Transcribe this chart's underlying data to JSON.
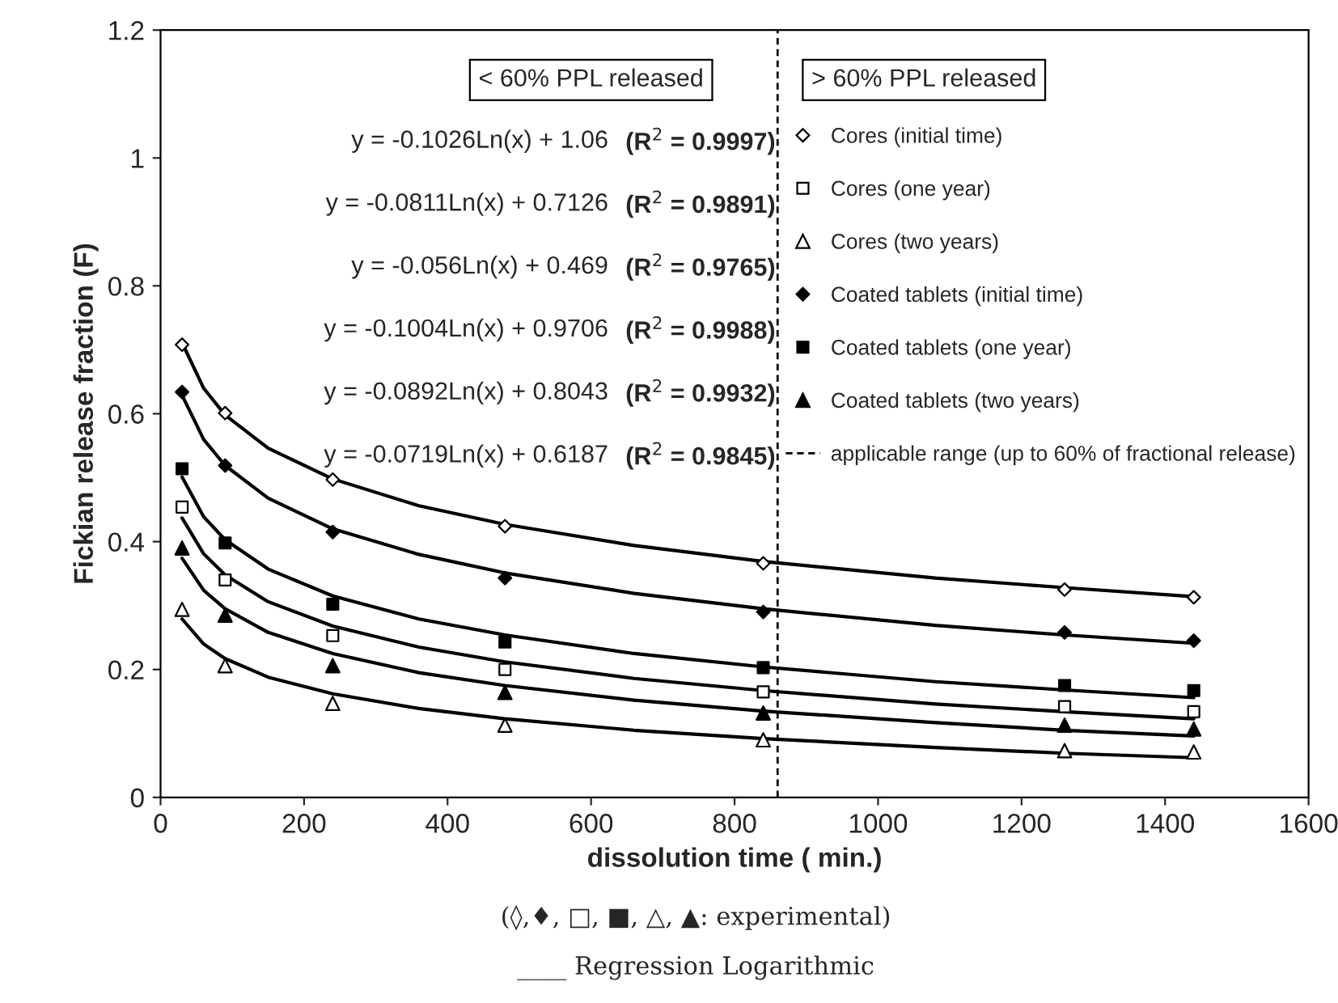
{
  "chart_data": {
    "type": "scatter",
    "xlabel": "dissolution time ( min.)",
    "ylabel": "Fickian release fraction (F)",
    "xlim": [
      0,
      1600
    ],
    "xticks": [
      0,
      200,
      400,
      600,
      800,
      1000,
      1200,
      1400,
      1600
    ],
    "ylim": [
      0,
      1.2
    ],
    "yticks": [
      0,
      0.2,
      0.4,
      0.6,
      0.8,
      1,
      1.2
    ],
    "grid": false,
    "legend": "top right",
    "x": [
      30,
      90,
      240,
      480,
      840,
      1260,
      1440
    ],
    "series": [
      {
        "name": "Cores (initial time)",
        "color": "#ffffff",
        "marker": "diamond",
        "values": [
          0.708,
          0.601,
          0.497,
          0.424,
          0.366,
          0.325,
          0.313
        ]
      },
      {
        "name": "Cores (one year)",
        "color": "#ffffff",
        "marker": "square",
        "values": [
          0.454,
          0.34,
          0.253,
          0.2,
          0.165,
          0.142,
          0.134
        ]
      },
      {
        "name": "Cores (two years)",
        "color": "#ffffff",
        "marker": "triangle",
        "values": [
          0.294,
          0.206,
          0.147,
          0.113,
          0.09,
          0.073,
          0.071
        ]
      },
      {
        "name": "Coated tablets (initial time)",
        "color": "#000000",
        "marker": "diamond",
        "values": [
          0.634,
          0.519,
          0.415,
          0.343,
          0.29,
          0.258,
          0.245
        ]
      },
      {
        "name": "Coated tablets (one year)",
        "color": "#000000",
        "marker": "square",
        "values": [
          0.514,
          0.398,
          0.302,
          0.243,
          0.203,
          0.175,
          0.167
        ]
      },
      {
        "name": "Coated tablets (two years)",
        "color": "#000000",
        "marker": "triangle",
        "values": [
          0.39,
          0.285,
          0.206,
          0.164,
          0.132,
          0.113,
          0.107
        ]
      },
      {
        "type": "line",
        "color": "#000000",
        "x": [
          30,
          60,
          90,
          150,
          240,
          360,
          480,
          660,
          840,
          1080,
          1260,
          1440
        ],
        "values": [
          0.711,
          0.64,
          0.598,
          0.546,
          0.498,
          0.456,
          0.427,
          0.394,
          0.369,
          0.343,
          0.328,
          0.314
        ]
      },
      {
        "type": "line",
        "color": "#000000",
        "x": [
          30,
          60,
          90,
          150,
          240,
          360,
          480,
          660,
          840,
          1080,
          1260,
          1440
        ],
        "values": [
          0.437,
          0.381,
          0.348,
          0.306,
          0.268,
          0.235,
          0.212,
          0.186,
          0.167,
          0.146,
          0.134,
          0.123
        ]
      },
      {
        "type": "line",
        "color": "#000000",
        "x": [
          30,
          60,
          90,
          150,
          240,
          360,
          480,
          660,
          840,
          1080,
          1260,
          1440
        ],
        "values": [
          0.279,
          0.24,
          0.217,
          0.188,
          0.162,
          0.139,
          0.123,
          0.105,
          0.092,
          0.078,
          0.069,
          0.062
        ]
      },
      {
        "type": "line",
        "color": "#000000",
        "x": [
          30,
          60,
          90,
          150,
          240,
          360,
          480,
          660,
          840,
          1080,
          1260,
          1440
        ],
        "values": [
          0.629,
          0.56,
          0.519,
          0.468,
          0.42,
          0.38,
          0.351,
          0.319,
          0.295,
          0.269,
          0.254,
          0.241
        ]
      },
      {
        "type": "line",
        "color": "#000000",
        "x": [
          30,
          60,
          90,
          150,
          240,
          360,
          480,
          660,
          840,
          1080,
          1260,
          1440
        ],
        "values": [
          0.501,
          0.439,
          0.403,
          0.357,
          0.315,
          0.279,
          0.254,
          0.225,
          0.204,
          0.181,
          0.168,
          0.156
        ]
      },
      {
        "type": "line",
        "color": "#000000",
        "x": [
          30,
          60,
          90,
          150,
          240,
          360,
          480,
          660,
          840,
          1080,
          1260,
          1440
        ],
        "values": [
          0.374,
          0.324,
          0.295,
          0.258,
          0.225,
          0.195,
          0.175,
          0.152,
          0.135,
          0.117,
          0.105,
          0.096
        ]
      }
    ],
    "ref_lines": [
      {
        "axis": "x",
        "value": 860,
        "label": "applicable range (up to 60% of fractional release)",
        "color": "#000000",
        "line_style": "dashed"
      }
    ],
    "annotations": [
      "< 60% PPL released",
      "> 60% PPL released",
      "y = -0.1026Ln(x) + 1.06",
      "(R$^{2}$ = 0.9997)",
      "y = -0.0811Ln(x) + 0.7126",
      "(R$^{2}$ = 0.9891)",
      "y = -0.056Ln(x) + 0.469",
      "(R$^{2}$ = 0.9765)",
      "y = -0.1004Ln(x) + 0.9706",
      "(R$^{2}$ = 0.9988)",
      "y = -0.0892Ln(x) + 0.8043",
      "(R$^{2}$ = 0.9932)",
      "y = -0.0719Ln(x) + 0.6187",
      "(R$^{2}$ = 0.9845)",
      "(◊,♦, □, ■, △, ▲: experimental)",
      "____ Regression Logarithmic"
    ]
  }
}
